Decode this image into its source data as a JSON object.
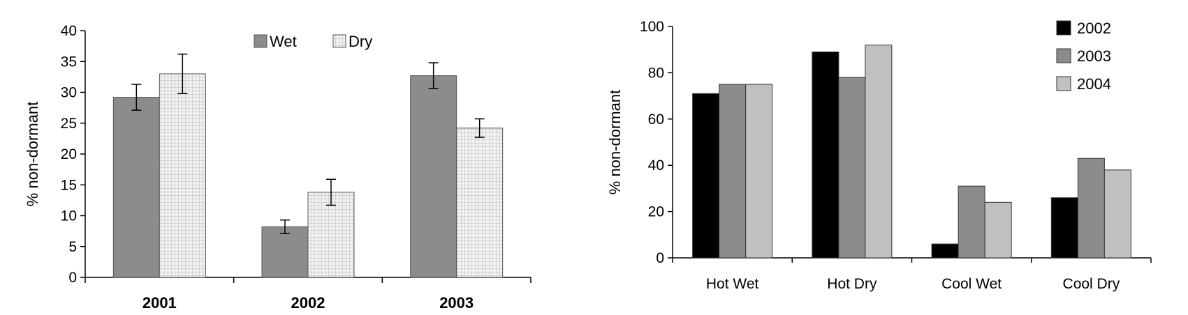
{
  "chart_data": [
    {
      "type": "bar",
      "categories": [
        "2001",
        "2002",
        "2003"
      ],
      "series": [
        {
          "name": "Wet",
          "values": [
            29.2,
            8.2,
            32.7
          ],
          "errors": [
            2.1,
            1.1,
            2.1
          ],
          "color": "#8c8c8c",
          "pattern": "solid"
        },
        {
          "name": "Dry",
          "values": [
            33.0,
            13.8,
            24.2
          ],
          "errors": [
            3.2,
            2.1,
            1.5
          ],
          "color": "#ebebeb",
          "pattern": "grid"
        }
      ],
      "title": "",
      "xlabel": "",
      "ylabel": "% non-dormant",
      "ylim": [
        0,
        40
      ],
      "yticks": [
        "0",
        "5",
        "10",
        "15",
        "20",
        "25",
        "30",
        "35",
        "40"
      ],
      "legend": "top-center",
      "grid": false
    },
    {
      "type": "bar",
      "categories": [
        "Hot Wet",
        "Hot Dry",
        "Cool Wet",
        "Cool Dry"
      ],
      "series": [
        {
          "name": "2002",
          "values": [
            71,
            89,
            6,
            26
          ],
          "color": "#000000"
        },
        {
          "name": "2003",
          "values": [
            75,
            78,
            31,
            43
          ],
          "color": "#8c8c8c"
        },
        {
          "name": "2004",
          "values": [
            75,
            92,
            24,
            38
          ],
          "color": "#c0c0c0"
        }
      ],
      "title": "",
      "xlabel": "",
      "ylabel": "% non-dormant",
      "ylim": [
        0,
        100
      ],
      "yticks": [
        "0",
        "20",
        "40",
        "60",
        "80",
        "100"
      ],
      "legend": "top-right",
      "grid": false
    }
  ]
}
